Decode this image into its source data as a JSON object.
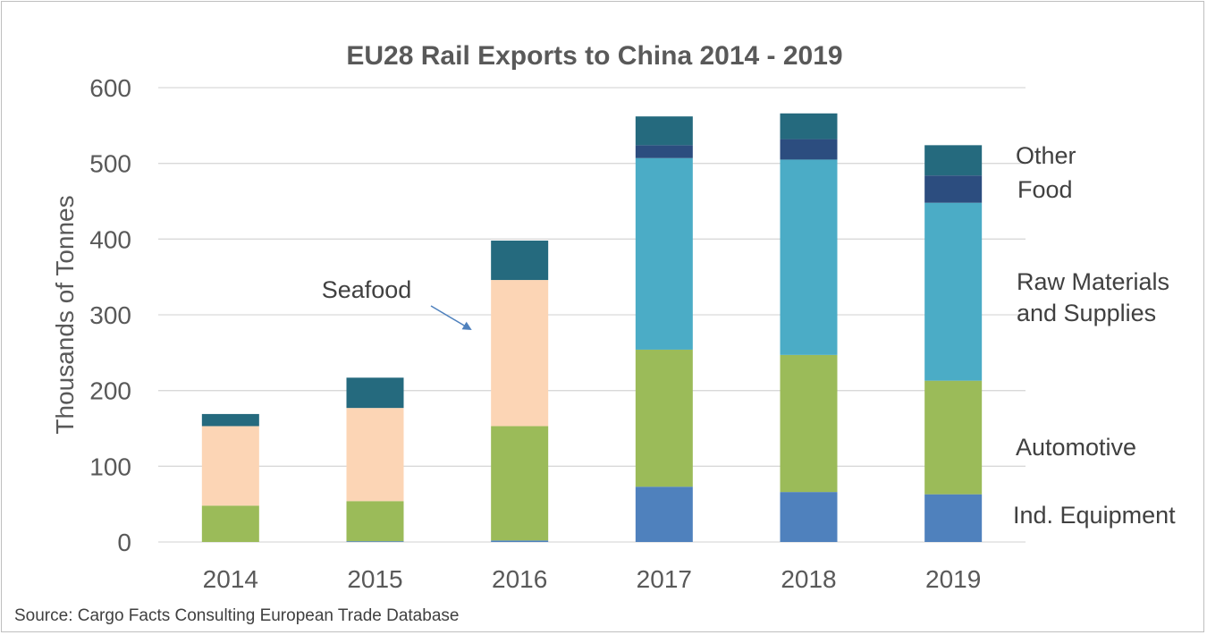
{
  "chart_data": {
    "type": "bar",
    "stacked": true,
    "title": "EU28 Rail Exports to China 2014 - 2019",
    "ylabel": "Thousands of Tonnes",
    "xlabel": "",
    "ylim": [
      0,
      600
    ],
    "yticks": [
      0,
      100,
      200,
      300,
      400,
      500,
      600
    ],
    "grid": true,
    "legend_placement": "right, inline labels",
    "categories": [
      "2014",
      "2015",
      "2016",
      "2017",
      "2018",
      "2019"
    ],
    "series": [
      {
        "name": "Ind. Equipment",
        "color": "#4f81bd",
        "values": [
          0,
          1,
          2,
          73,
          66,
          63
        ]
      },
      {
        "name": "Automotive",
        "color": "#9bbb59",
        "values": [
          48,
          53,
          151,
          181,
          181,
          150
        ]
      },
      {
        "name": "Seafood",
        "color": "#fcd5b5",
        "values": [
          105,
          123,
          193,
          0,
          0,
          0
        ]
      },
      {
        "name": "Raw Materials and Supplies",
        "color": "#4bacc6",
        "values": [
          0,
          0,
          0,
          253,
          258,
          235
        ]
      },
      {
        "name": "Food",
        "color": "#2c4d7f",
        "values": [
          0,
          0,
          0,
          17,
          27,
          36
        ]
      },
      {
        "name": "Other",
        "color": "#256a7e",
        "values": [
          16,
          40,
          52,
          38,
          34,
          40
        ]
      }
    ],
    "legend": [
      {
        "label": "Other",
        "series": "Other"
      },
      {
        "label": "Food",
        "series": "Food"
      },
      {
        "label": "Raw Materials",
        "series": "Raw Materials and Supplies"
      },
      {
        "label": "and Supplies",
        "series": "Raw Materials and Supplies"
      },
      {
        "label": "Automotive",
        "series": "Automotive"
      },
      {
        "label": "Ind. Equipment",
        "series": "Ind. Equipment"
      }
    ],
    "annotation": {
      "text": "Seafood",
      "target_category": "2016"
    },
    "gridline_color": "#d9d9d9"
  },
  "source": "Source: Cargo Facts Consulting European Trade Database"
}
